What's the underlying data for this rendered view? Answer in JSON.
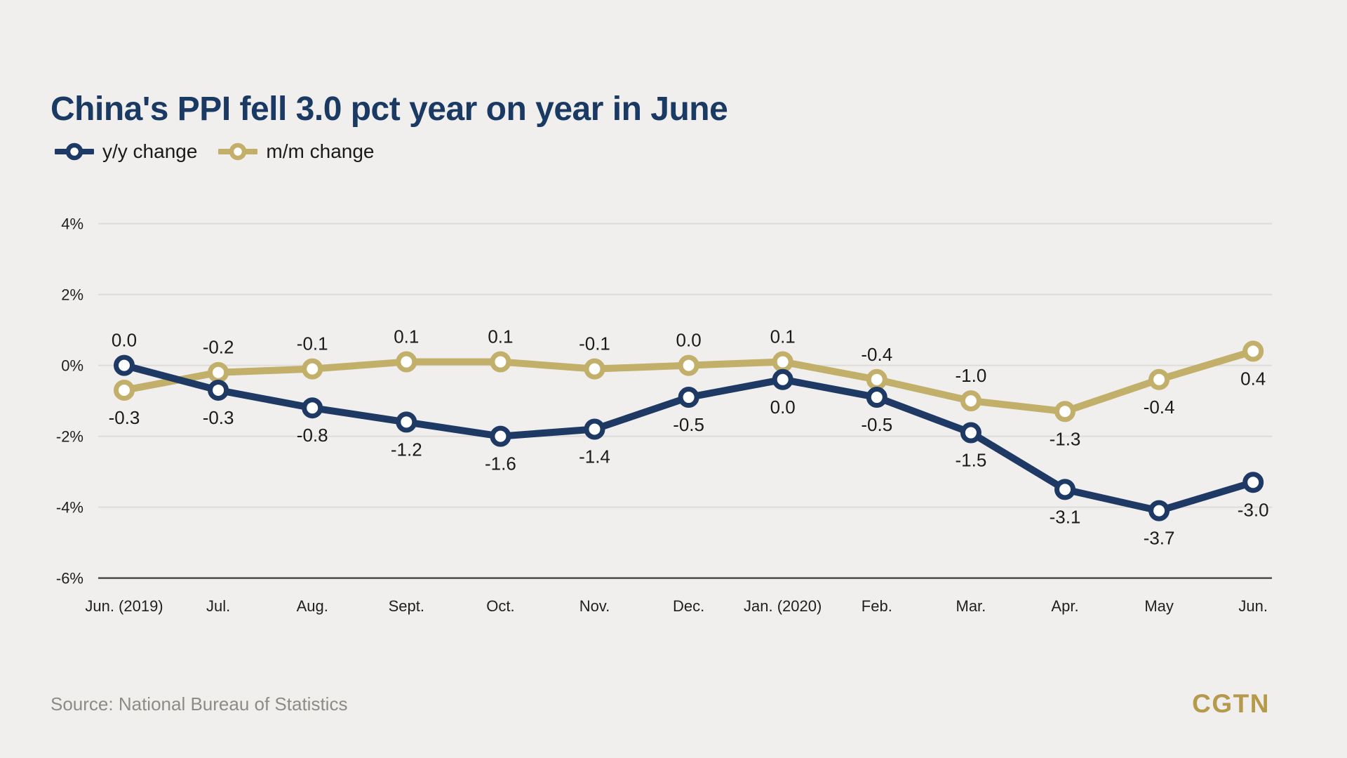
{
  "header": {
    "title": "China's PPI fell 3.0 pct year on year in June"
  },
  "legend": {
    "items": [
      {
        "label": "y/y change"
      },
      {
        "label": "m/m change"
      }
    ]
  },
  "footer": {
    "source_text": "Source: National Bureau of Statistics",
    "logo_text": "CGTN"
  },
  "colors": {
    "background": "#f0efed",
    "title": "#1a3a63",
    "grid_line": "#dddcd9",
    "axis_line": "#4a4a4a",
    "tick_text": "#1f1f1f",
    "data_label": "#1a1a1a",
    "source_text": "#8c8c86",
    "logo": "#b49a4a"
  },
  "chart_data": {
    "type": "line",
    "title": "China's PPI fell 3.0 pct year on year in June",
    "categories": [
      "Jun. (2019)",
      "Jul.",
      "Aug.",
      "Sept.",
      "Oct.",
      "Nov.",
      "Dec.",
      "Jan. (2020)",
      "Feb.",
      "Mar.",
      "Apr.",
      "May",
      "Jun."
    ],
    "xlabel": "",
    "ylabel": "",
    "ylim": [
      -6,
      4
    ],
    "grid": true,
    "legend_position": "top-left",
    "y_axis": {
      "tick_labels": [
        "4%",
        "2%",
        "0%",
        "-2%",
        "-4%",
        "-6%"
      ],
      "tick_values": [
        4,
        2,
        0,
        -2,
        -4,
        -6
      ]
    },
    "series": [
      {
        "name": "m/m change",
        "color": "#c2af69",
        "values": [
          -0.3,
          -0.2,
          -0.1,
          0.1,
          0.1,
          -0.1,
          0.0,
          0.1,
          -0.4,
          -1.0,
          -1.3,
          -0.4,
          0.4
        ],
        "labels": [
          "-0.3",
          "-0.2",
          "-0.1",
          "0.1",
          "0.1",
          "-0.1",
          "0.0",
          "0.1",
          "-0.4",
          "-1.0",
          "-1.3",
          "-0.4",
          "0.4"
        ],
        "label_side": [
          "below",
          "above",
          "above",
          "above",
          "above",
          "above",
          "above",
          "above",
          "above",
          "above",
          "below",
          "below",
          "below"
        ],
        "plot_y": [
          -0.7,
          -0.2,
          -0.1,
          0.1,
          0.1,
          -0.1,
          0.0,
          0.1,
          -0.4,
          -1.0,
          -1.3,
          -0.4,
          0.4
        ]
      },
      {
        "name": "y/y change",
        "color": "#1e3a64",
        "values": [
          0.0,
          -0.3,
          -0.8,
          -1.2,
          -1.6,
          -1.4,
          -0.5,
          0.0,
          -0.5,
          -1.5,
          -3.1,
          -3.7,
          -3.0
        ],
        "labels": [
          "0.0",
          "-0.3",
          "-0.8",
          "-1.2",
          "-1.6",
          "-1.4",
          "-0.5",
          "0.0",
          "-0.5",
          "-1.5",
          "-3.1",
          "-3.7",
          "-3.0"
        ],
        "label_side": [
          "above",
          "below",
          "below",
          "below",
          "below",
          "below",
          "below",
          "below",
          "below",
          "below",
          "below",
          "below",
          "below"
        ],
        "plot_y": [
          0.0,
          -0.7,
          -1.2,
          -1.6,
          -2.0,
          -1.8,
          -0.9,
          -0.4,
          -0.9,
          -1.9,
          -3.5,
          -4.1,
          -3.3
        ]
      }
    ]
  }
}
